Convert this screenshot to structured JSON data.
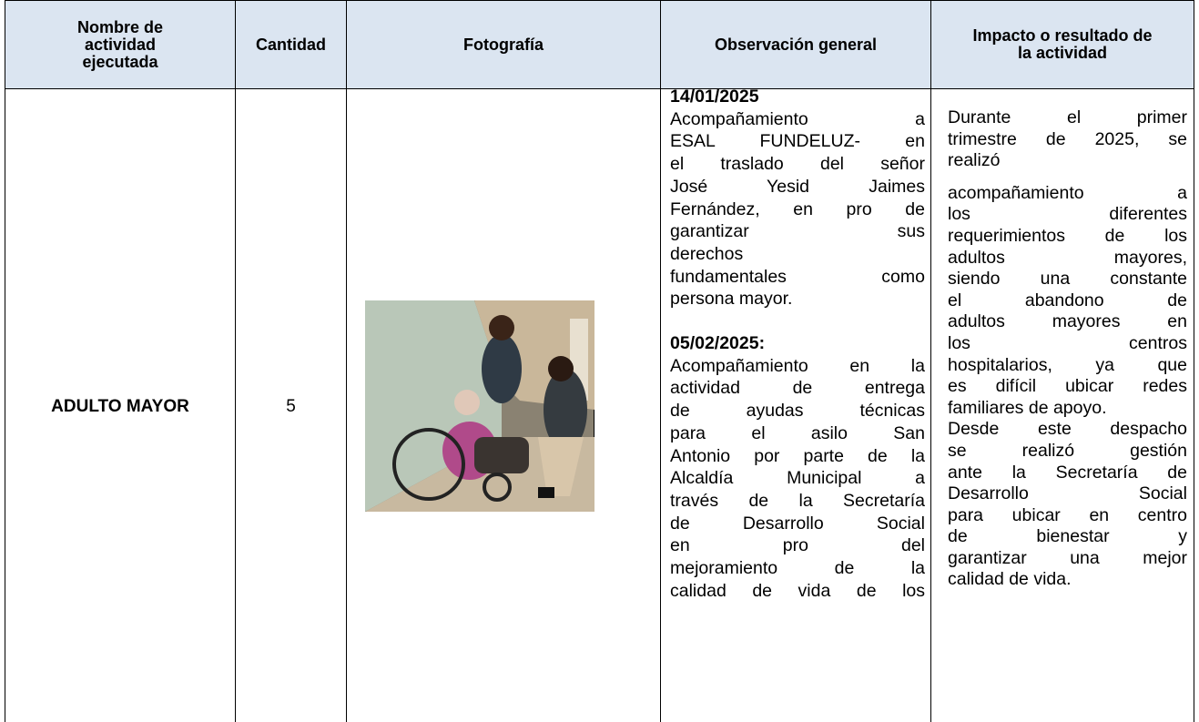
{
  "table": {
    "headers": [
      "Nombre de actividad ejecutada",
      "Cantidad",
      "Fotografía",
      "Observación general",
      "Impacto o resultado de la actividad"
    ],
    "rows": [
      {
        "activity": "ADULTO MAYOR",
        "quantity": 5,
        "observations": [
          {
            "date": "14/01/2025",
            "lines": [
              "Acompañamiento a",
              "ESAL FUNDELUZ- en",
              "el traslado del señor",
              "José Yesid Jaimes",
              "Fernández, en pro de",
              "garantizar sus",
              "derechos",
              "fundamentales como",
              "persona mayor."
            ]
          },
          {
            "date": "05/02/2025:",
            "lines": [
              "Acompañamiento en la",
              "actividad de entrega",
              "de ayudas técnicas",
              "para el asilo San",
              "Antonio por parte de la",
              "Alcaldía Municipal a",
              "través de la Secretaría",
              "de Desarrollo Social",
              "en pro del",
              "mejoramiento de la",
              "calidad de vida de los"
            ]
          }
        ],
        "impact": [
          "Durante el primer",
          "trimestre de 2025, se",
          "realizó",
          "acompañamiento a",
          "los diferentes",
          "requerimientos de los",
          "adultos mayores,",
          "siendo una constante",
          "el abandono de",
          "adultos mayores en",
          "los centros",
          "hospitalarios, ya que",
          "es difícil ubicar redes",
          "familiares de apoyo.",
          "Desde este despacho",
          "se realizó gestión",
          "ante la Secretaría de",
          "Desarrollo Social",
          "para ubicar en centro",
          "de bienestar y",
          "garantizar una mejor",
          "calidad de vida."
        ]
      }
    ]
  }
}
